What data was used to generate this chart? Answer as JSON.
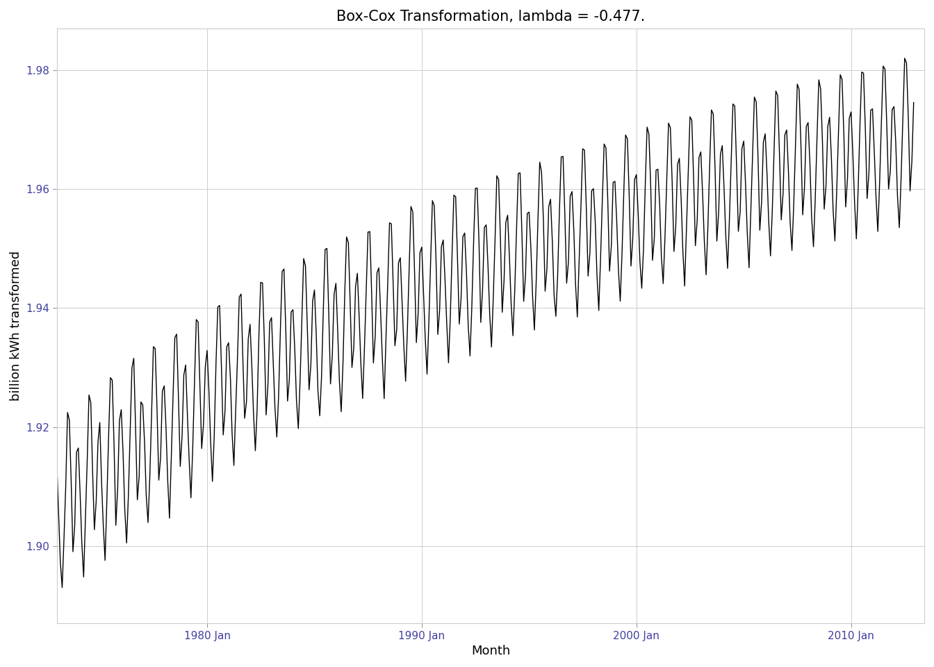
{
  "title": "Box-Cox Transformation, lambda = -0.477.",
  "xlabel": "Month",
  "ylabel": "billion kWh transformed",
  "lambda": -0.477,
  "background_color": "#ffffff",
  "panel_color": "#ffffff",
  "grid_color": "#cccccc",
  "line_color": "#000000",
  "line_width": 1.0,
  "ylim": [
    1.887,
    1.987
  ],
  "yticks": [
    1.9,
    1.92,
    1.94,
    1.96,
    1.98
  ],
  "xtick_labels": [
    "1980 Jan",
    "1990 Jan",
    "2000 Jan",
    "2010 Jan"
  ],
  "title_fontsize": 15,
  "axis_label_fontsize": 13,
  "tick_fontsize": 11,
  "tick_color": "#4040a0"
}
